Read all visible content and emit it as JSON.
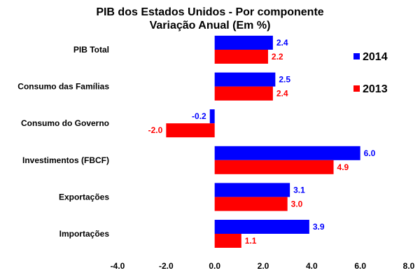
{
  "chart_data": {
    "type": "bar",
    "orientation": "horizontal",
    "title": "PIB dos Estados Unidos - Por componente",
    "subtitle": "Variação Anual (Em %)",
    "categories": [
      "PIB Total",
      "Consumo das Famílias",
      "Consumo do Governo",
      "Investimentos (FBCF)",
      "Exportações",
      "Importações"
    ],
    "series": [
      {
        "name": "2014",
        "color": "#0000ff",
        "values": [
          2.4,
          2.5,
          -0.2,
          6.0,
          3.1,
          3.9
        ],
        "labels": [
          "2.4",
          "2.5",
          "-0.2",
          "6.0",
          "3.1",
          "3.9"
        ]
      },
      {
        "name": "2013",
        "color": "#ff0000",
        "values": [
          2.2,
          2.4,
          -2.0,
          4.9,
          3.0,
          1.1
        ],
        "labels": [
          "2.2",
          "2.4",
          "-2.0",
          "4.9",
          "3.0",
          "1.1"
        ]
      }
    ],
    "xlim": [
      -4.0,
      8.0
    ],
    "xticks": [
      -4.0,
      -2.0,
      0.0,
      2.0,
      4.0,
      6.0,
      8.0
    ],
    "xtick_labels": [
      "-4.0",
      "-2.0",
      "0.0",
      "2.0",
      "4.0",
      "6.0",
      "8.0"
    ],
    "grid": false,
    "legend": "right"
  }
}
